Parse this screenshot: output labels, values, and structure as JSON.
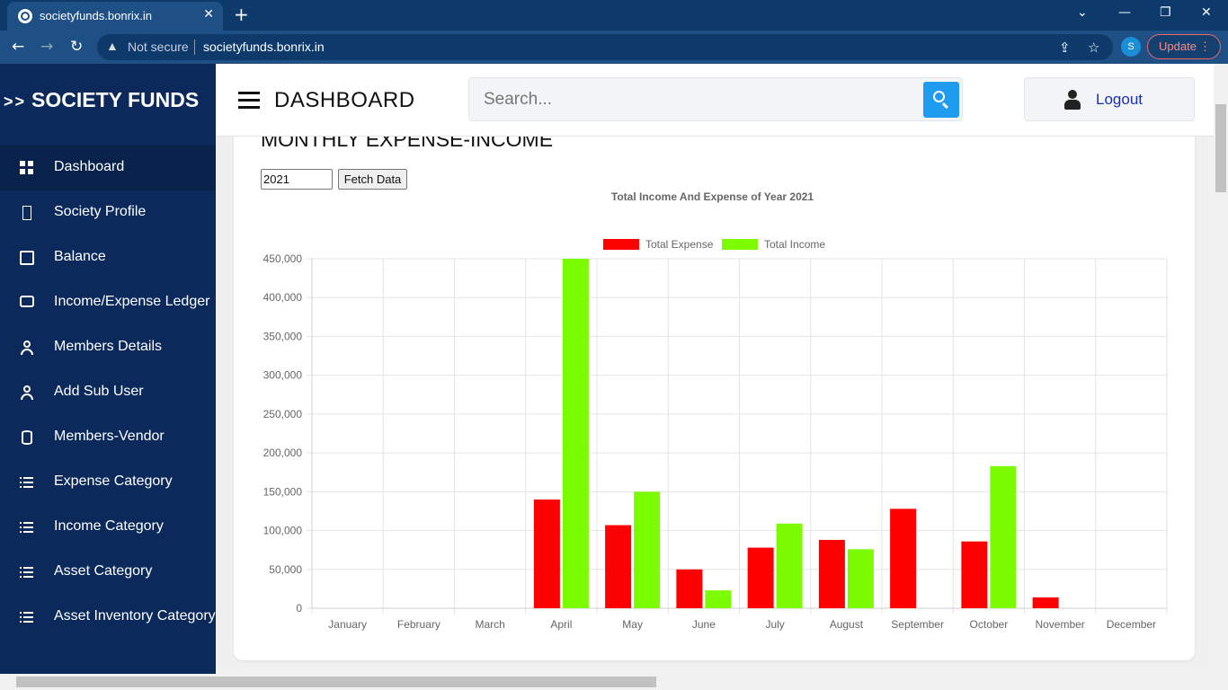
{
  "browser": {
    "tab_title": "societyfunds.bonrix.in",
    "security_label": "Not secure",
    "url": "societyfunds.bonrix.in",
    "profile_initial": "S",
    "update_label": "Update"
  },
  "sidebar": {
    "brand_arrows": ">>",
    "brand": "SOCIETY FUNDS",
    "items": [
      {
        "label": "Dashboard",
        "icon": "grid-icon"
      },
      {
        "label": "Society Profile",
        "icon": "rectangle-icon"
      },
      {
        "label": "Balance",
        "icon": "book-icon"
      },
      {
        "label": "Income/Expense Ledger",
        "icon": "chat-icon"
      },
      {
        "label": "Members Details",
        "icon": "user-icon"
      },
      {
        "label": "Add Sub User",
        "icon": "user-icon"
      },
      {
        "label": "Members-Vendor",
        "icon": "database-icon"
      },
      {
        "label": "Expense Category",
        "icon": "list-icon"
      },
      {
        "label": "Income Category",
        "icon": "list-icon"
      },
      {
        "label": "Asset Category",
        "icon": "list-icon"
      },
      {
        "label": "Asset Inventory Category",
        "icon": "list-icon"
      }
    ]
  },
  "header": {
    "title": "DASHBOARD",
    "search_placeholder": "Search...",
    "logout_label": "Logout"
  },
  "main": {
    "section_title": "MONTHLY EXPENSE-INCOME",
    "year_value": "2021",
    "fetch_label": "Fetch Data"
  },
  "chart_data": {
    "type": "bar",
    "title": "Total Income And Expense of Year 2021",
    "categories": [
      "January",
      "February",
      "March",
      "April",
      "May",
      "June",
      "July",
      "August",
      "September",
      "October",
      "November",
      "December"
    ],
    "series": [
      {
        "name": "Total Expense",
        "color": "#ff0000",
        "values": [
          0,
          0,
          0,
          140000,
          107000,
          50000,
          78000,
          88000,
          128000,
          86000,
          14000,
          0
        ]
      },
      {
        "name": "Total Income",
        "color": "#7cfc00",
        "values": [
          0,
          0,
          0,
          450000,
          150000,
          23000,
          109000,
          76000,
          0,
          183000,
          0,
          0
        ]
      }
    ],
    "ylim": [
      0,
      450000
    ],
    "yticks": [
      0,
      50000,
      100000,
      150000,
      200000,
      250000,
      300000,
      350000,
      400000,
      450000
    ],
    "grid": true,
    "legend": "top-center"
  }
}
